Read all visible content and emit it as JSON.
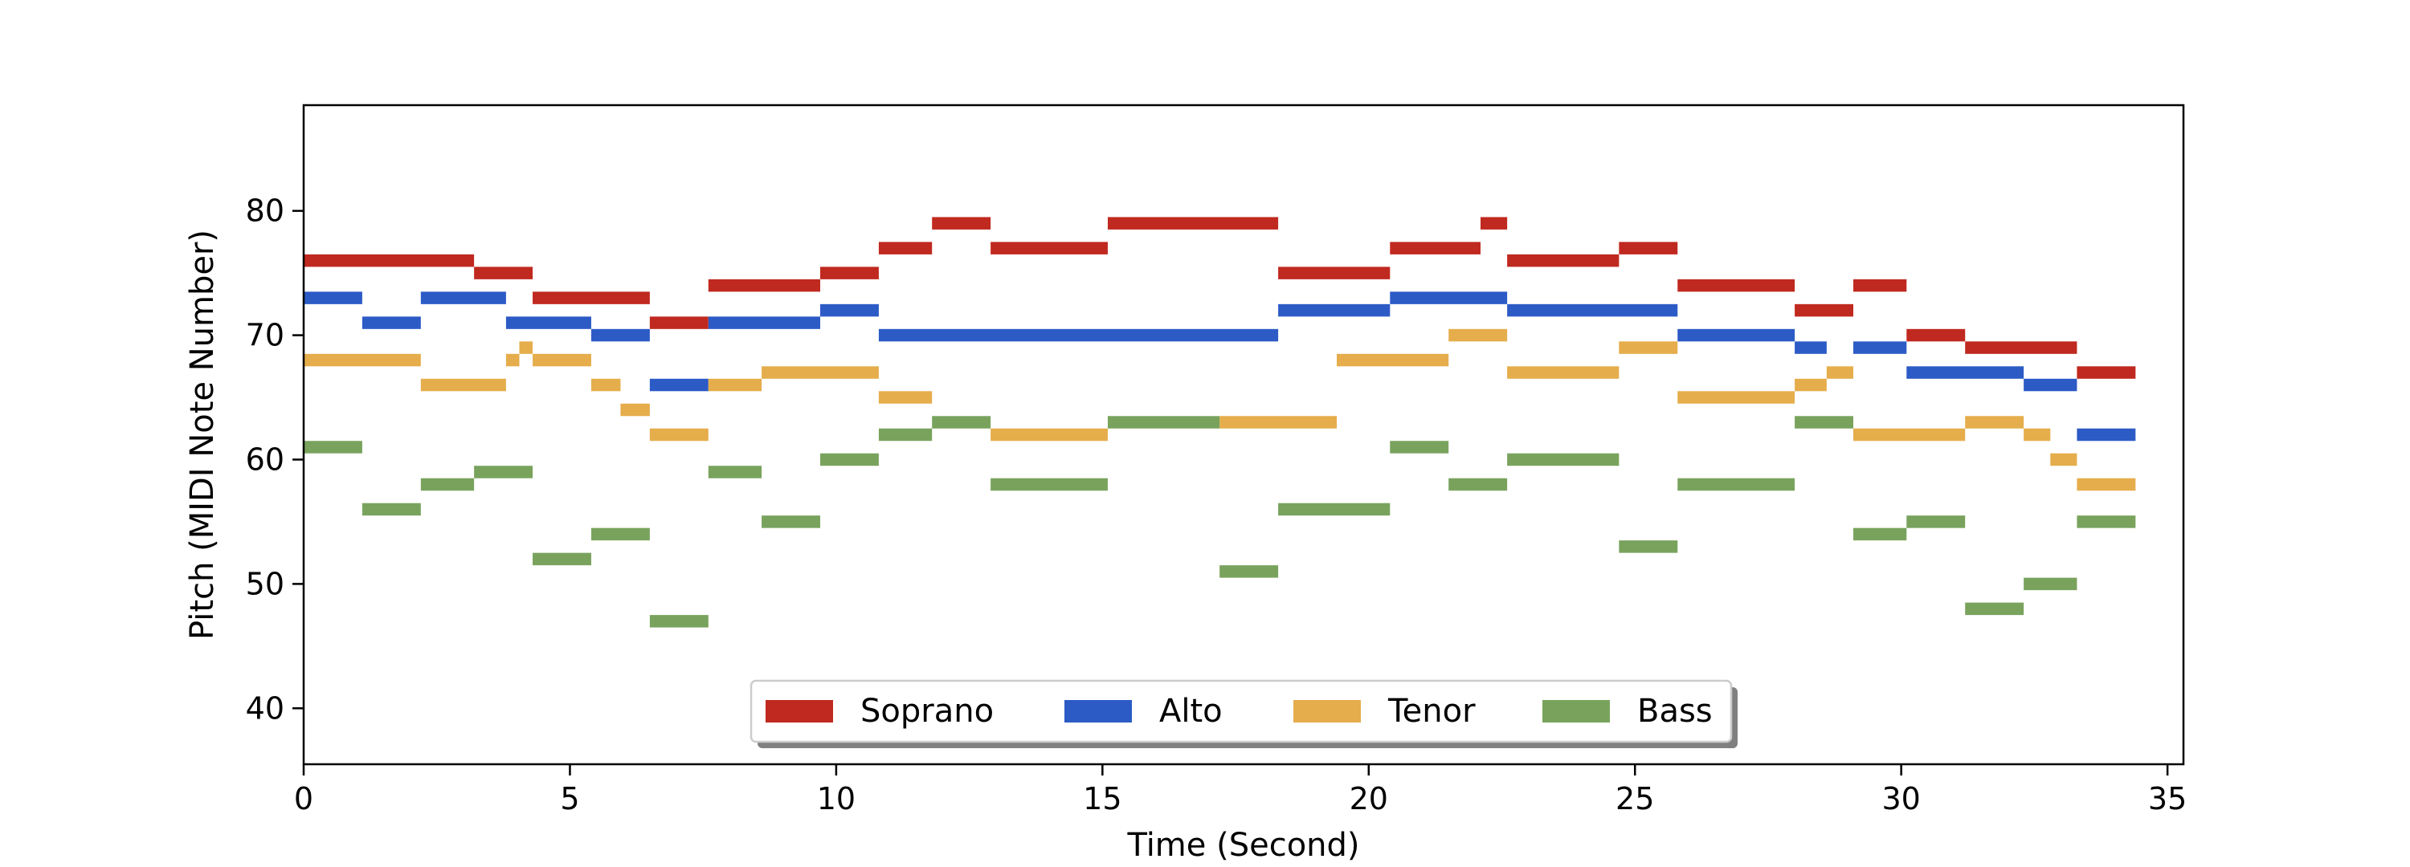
{
  "chart_data": {
    "type": "bar",
    "title": "",
    "xlabel": "Time (Second)",
    "ylabel": "Pitch (MIDI Note Number)",
    "xlim": [
      0,
      35.3
    ],
    "ylim": [
      35.5,
      88.5
    ],
    "xticks": [
      0,
      5,
      10,
      15,
      20,
      25,
      30,
      35
    ],
    "yticks": [
      40,
      50,
      60,
      70,
      80
    ],
    "grid": false,
    "legend_position": "bottom-center",
    "series": [
      {
        "name": "Soprano",
        "color": "#c0291f",
        "notes": [
          {
            "start": 0,
            "end": 3.2,
            "pitch": 76
          },
          {
            "start": 3.2,
            "end": 4.3,
            "pitch": 75
          },
          {
            "start": 4.3,
            "end": 6.5,
            "pitch": 73
          },
          {
            "start": 6.5,
            "end": 7.6,
            "pitch": 71
          },
          {
            "start": 7.6,
            "end": 9.7,
            "pitch": 74
          },
          {
            "start": 9.7,
            "end": 10.8,
            "pitch": 75
          },
          {
            "start": 10.8,
            "end": 11.8,
            "pitch": 77
          },
          {
            "start": 11.8,
            "end": 12.9,
            "pitch": 79
          },
          {
            "start": 12.9,
            "end": 15.1,
            "pitch": 77
          },
          {
            "start": 15.1,
            "end": 18.3,
            "pitch": 79
          },
          {
            "start": 18.3,
            "end": 20.4,
            "pitch": 75
          },
          {
            "start": 20.4,
            "end": 22.1,
            "pitch": 77
          },
          {
            "start": 22.1,
            "end": 22.6,
            "pitch": 79
          },
          {
            "start": 22.6,
            "end": 24.7,
            "pitch": 76
          },
          {
            "start": 24.7,
            "end": 25.8,
            "pitch": 77
          },
          {
            "start": 25.8,
            "end": 28.0,
            "pitch": 74
          },
          {
            "start": 28.0,
            "end": 29.1,
            "pitch": 72
          },
          {
            "start": 29.1,
            "end": 30.1,
            "pitch": 74
          },
          {
            "start": 30.1,
            "end": 31.2,
            "pitch": 70
          },
          {
            "start": 31.2,
            "end": 33.3,
            "pitch": 69
          },
          {
            "start": 33.3,
            "end": 34.4,
            "pitch": 67
          }
        ]
      },
      {
        "name": "Alto",
        "color": "#2c5bc6",
        "notes": [
          {
            "start": 0,
            "end": 1.1,
            "pitch": 73
          },
          {
            "start": 1.1,
            "end": 2.2,
            "pitch": 71
          },
          {
            "start": 2.2,
            "end": 3.8,
            "pitch": 73
          },
          {
            "start": 3.8,
            "end": 5.4,
            "pitch": 71
          },
          {
            "start": 5.4,
            "end": 6.5,
            "pitch": 70
          },
          {
            "start": 6.5,
            "end": 7.6,
            "pitch": 66
          },
          {
            "start": 7.6,
            "end": 9.7,
            "pitch": 71
          },
          {
            "start": 9.7,
            "end": 10.8,
            "pitch": 72
          },
          {
            "start": 10.8,
            "end": 18.3,
            "pitch": 70
          },
          {
            "start": 18.3,
            "end": 20.4,
            "pitch": 72
          },
          {
            "start": 20.4,
            "end": 22.6,
            "pitch": 73
          },
          {
            "start": 22.6,
            "end": 25.8,
            "pitch": 72
          },
          {
            "start": 25.8,
            "end": 28.0,
            "pitch": 70
          },
          {
            "start": 28.0,
            "end": 28.6,
            "pitch": 69
          },
          {
            "start": 29.1,
            "end": 30.1,
            "pitch": 69
          },
          {
            "start": 30.1,
            "end": 32.3,
            "pitch": 67
          },
          {
            "start": 32.3,
            "end": 33.3,
            "pitch": 66
          },
          {
            "start": 33.3,
            "end": 34.4,
            "pitch": 62
          }
        ]
      },
      {
        "name": "Tenor",
        "color": "#e5ad4b",
        "notes": [
          {
            "start": 0,
            "end": 2.2,
            "pitch": 68
          },
          {
            "start": 2.2,
            "end": 3.8,
            "pitch": 66
          },
          {
            "start": 3.8,
            "end": 4.05,
            "pitch": 68
          },
          {
            "start": 4.05,
            "end": 4.3,
            "pitch": 69
          },
          {
            "start": 4.3,
            "end": 5.4,
            "pitch": 68
          },
          {
            "start": 5.4,
            "end": 5.95,
            "pitch": 66
          },
          {
            "start": 5.95,
            "end": 6.5,
            "pitch": 64
          },
          {
            "start": 6.5,
            "end": 7.6,
            "pitch": 62
          },
          {
            "start": 7.6,
            "end": 8.6,
            "pitch": 66
          },
          {
            "start": 8.6,
            "end": 10.8,
            "pitch": 67
          },
          {
            "start": 10.8,
            "end": 11.8,
            "pitch": 65
          },
          {
            "start": 12.9,
            "end": 15.1,
            "pitch": 62
          },
          {
            "start": 17.2,
            "end": 19.4,
            "pitch": 63
          },
          {
            "start": 19.4,
            "end": 21.5,
            "pitch": 68
          },
          {
            "start": 21.5,
            "end": 22.6,
            "pitch": 70
          },
          {
            "start": 22.6,
            "end": 24.7,
            "pitch": 67
          },
          {
            "start": 24.7,
            "end": 25.8,
            "pitch": 69
          },
          {
            "start": 25.8,
            "end": 28.0,
            "pitch": 65
          },
          {
            "start": 28.0,
            "end": 28.6,
            "pitch": 66
          },
          {
            "start": 28.6,
            "end": 29.1,
            "pitch": 67
          },
          {
            "start": 29.1,
            "end": 31.2,
            "pitch": 62
          },
          {
            "start": 31.2,
            "end": 32.3,
            "pitch": 63
          },
          {
            "start": 32.3,
            "end": 32.8,
            "pitch": 62
          },
          {
            "start": 32.8,
            "end": 33.3,
            "pitch": 60
          },
          {
            "start": 33.3,
            "end": 34.4,
            "pitch": 58
          }
        ]
      },
      {
        "name": "Bass",
        "color": "#79a35d",
        "notes": [
          {
            "start": 0,
            "end": 1.1,
            "pitch": 61
          },
          {
            "start": 1.1,
            "end": 2.2,
            "pitch": 56
          },
          {
            "start": 2.2,
            "end": 3.2,
            "pitch": 58
          },
          {
            "start": 3.2,
            "end": 4.3,
            "pitch": 59
          },
          {
            "start": 4.3,
            "end": 5.4,
            "pitch": 52
          },
          {
            "start": 5.4,
            "end": 6.5,
            "pitch": 54
          },
          {
            "start": 6.5,
            "end": 7.6,
            "pitch": 47
          },
          {
            "start": 7.6,
            "end": 8.6,
            "pitch": 59
          },
          {
            "start": 8.6,
            "end": 9.7,
            "pitch": 55
          },
          {
            "start": 9.7,
            "end": 10.8,
            "pitch": 60
          },
          {
            "start": 10.8,
            "end": 11.8,
            "pitch": 62
          },
          {
            "start": 11.8,
            "end": 12.9,
            "pitch": 63
          },
          {
            "start": 12.9,
            "end": 15.1,
            "pitch": 58
          },
          {
            "start": 15.1,
            "end": 17.2,
            "pitch": 63
          },
          {
            "start": 17.2,
            "end": 18.3,
            "pitch": 51
          },
          {
            "start": 18.3,
            "end": 20.4,
            "pitch": 56
          },
          {
            "start": 20.4,
            "end": 21.5,
            "pitch": 61
          },
          {
            "start": 21.5,
            "end": 22.6,
            "pitch": 58
          },
          {
            "start": 22.6,
            "end": 24.7,
            "pitch": 60
          },
          {
            "start": 24.7,
            "end": 25.8,
            "pitch": 53
          },
          {
            "start": 25.8,
            "end": 28.0,
            "pitch": 58
          },
          {
            "start": 28.0,
            "end": 29.1,
            "pitch": 63
          },
          {
            "start": 29.1,
            "end": 30.1,
            "pitch": 54
          },
          {
            "start": 30.1,
            "end": 31.2,
            "pitch": 55
          },
          {
            "start": 31.2,
            "end": 32.3,
            "pitch": 48
          },
          {
            "start": 32.3,
            "end": 33.3,
            "pitch": 50
          },
          {
            "start": 33.3,
            "end": 34.4,
            "pitch": 55
          }
        ]
      }
    ]
  }
}
